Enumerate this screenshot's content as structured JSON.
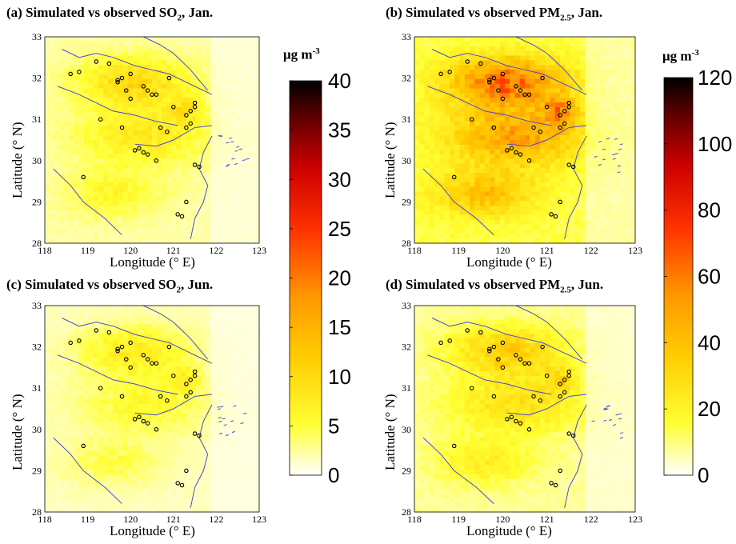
{
  "units": {
    "main": "μg m",
    "exp": "-3"
  },
  "xlabel": "Longitude (°  E)",
  "ylabel": "Latitude (°  N)",
  "x_ticks": [
    "118",
    "119",
    "120",
    "121",
    "122",
    "123"
  ],
  "y_ticks": [
    "28",
    "29",
    "30",
    "31",
    "32",
    "33"
  ],
  "titles": {
    "a": {
      "pre": "(a) Simulated vs observed SO",
      "sub": "2",
      "post": ", Jan."
    },
    "b": {
      "pre": "(b) Simulated vs observed PM",
      "sub": "2.5",
      "post": ", Jan."
    },
    "c": {
      "pre": "(c) Simulated vs observed SO",
      "sub": "2",
      "post": ", Jun."
    },
    "d": {
      "pre": "(d) Simulated vs observed PM",
      "sub": "2.5",
      "post": ", Jun."
    }
  },
  "colorbars": {
    "so2": {
      "ticks": [
        "0",
        "5",
        "10",
        "15",
        "20",
        "25",
        "30",
        "35",
        "40"
      ],
      "min": 0,
      "max": 40
    },
    "pm25": {
      "ticks": [
        "0",
        "20",
        "40",
        "60",
        "80",
        "100",
        "120"
      ],
      "min": 0,
      "max": 120
    }
  },
  "colors": {
    "coast": "#4a4ad0",
    "colormap": [
      "#ffffff",
      "#ffff33",
      "#ffcc00",
      "#ff9900",
      "#ff3300",
      "#cc0000",
      "#660000",
      "#000000"
    ]
  },
  "chart_data": [
    {
      "type": "heatmap",
      "panel": "a",
      "title": "(a) Simulated vs observed SO2, Jan.",
      "xlabel": "Longitude (°  E)",
      "ylabel": "Latitude (°  N)",
      "xlim": [
        118,
        123
      ],
      "ylim": [
        28,
        33
      ],
      "colorbar_range": [
        0,
        40
      ],
      "pollutant": "SO2",
      "month": "Jan.",
      "max_value": 16,
      "stations": [
        [
          118.6,
          32.1
        ],
        [
          118.8,
          32.15
        ],
        [
          119.2,
          32.4
        ],
        [
          119.5,
          32.35
        ],
        [
          119.7,
          31.95
        ],
        [
          119.8,
          32.0
        ],
        [
          120.0,
          32.1
        ],
        [
          120.3,
          31.8
        ],
        [
          120.4,
          31.7
        ],
        [
          120.5,
          31.6
        ],
        [
          120.6,
          31.6
        ],
        [
          120.9,
          32.0
        ],
        [
          121.0,
          31.3
        ],
        [
          121.3,
          31.1
        ],
        [
          121.4,
          31.2
        ],
        [
          121.5,
          31.3
        ],
        [
          121.5,
          31.4
        ],
        [
          121.4,
          30.9
        ],
        [
          121.3,
          30.8
        ],
        [
          120.2,
          30.3
        ],
        [
          120.1,
          30.25
        ],
        [
          120.3,
          30.2
        ],
        [
          120.4,
          30.15
        ],
        [
          119.3,
          31.0
        ],
        [
          119.8,
          30.8
        ],
        [
          120.6,
          30.0
        ],
        [
          121.5,
          29.9
        ],
        [
          121.6,
          29.85
        ],
        [
          118.9,
          29.6
        ],
        [
          121.1,
          28.7
        ],
        [
          121.2,
          28.65
        ],
        [
          121.3,
          29.0
        ],
        [
          120.7,
          30.8
        ],
        [
          120.85,
          30.7
        ],
        [
          119.9,
          31.7
        ],
        [
          120.0,
          31.5
        ],
        [
          119.7,
          31.9
        ]
      ]
    },
    {
      "type": "heatmap",
      "panel": "b",
      "title": "(b) Simulated vs observed PM2.5, Jan.",
      "xlabel": "Longitude (°  E)",
      "ylabel": "Latitude (°  N)",
      "xlim": [
        118,
        123
      ],
      "ylim": [
        28,
        33
      ],
      "colorbar_range": [
        0,
        120
      ],
      "pollutant": "PM2.5",
      "month": "Jan.",
      "max_value": 100,
      "stations": [
        [
          118.6,
          32.1
        ],
        [
          118.8,
          32.15
        ],
        [
          119.2,
          32.4
        ],
        [
          119.5,
          32.35
        ],
        [
          119.7,
          31.95
        ],
        [
          119.8,
          32.0
        ],
        [
          120.0,
          32.1
        ],
        [
          120.3,
          31.8
        ],
        [
          120.4,
          31.7
        ],
        [
          120.5,
          31.6
        ],
        [
          120.6,
          31.6
        ],
        [
          120.9,
          32.0
        ],
        [
          121.0,
          31.3
        ],
        [
          121.3,
          31.1
        ],
        [
          121.4,
          31.2
        ],
        [
          121.5,
          31.3
        ],
        [
          121.5,
          31.4
        ],
        [
          121.4,
          30.9
        ],
        [
          121.3,
          30.8
        ],
        [
          120.2,
          30.3
        ],
        [
          120.1,
          30.25
        ],
        [
          120.3,
          30.2
        ],
        [
          120.4,
          30.15
        ],
        [
          119.3,
          31.0
        ],
        [
          119.8,
          30.8
        ],
        [
          120.6,
          30.0
        ],
        [
          121.5,
          29.9
        ],
        [
          121.6,
          29.85
        ],
        [
          118.9,
          29.6
        ],
        [
          121.1,
          28.7
        ],
        [
          121.2,
          28.65
        ],
        [
          121.3,
          29.0
        ],
        [
          120.7,
          30.8
        ],
        [
          120.85,
          30.7
        ],
        [
          119.9,
          31.7
        ],
        [
          120.0,
          31.5
        ],
        [
          119.7,
          31.9
        ]
      ]
    },
    {
      "type": "heatmap",
      "panel": "c",
      "title": "(c) Simulated vs observed SO2, Jun.",
      "xlabel": "Longitude (°  E)",
      "ylabel": "Latitude (°  N)",
      "xlim": [
        118,
        123
      ],
      "ylim": [
        28,
        33
      ],
      "colorbar_range": [
        0,
        40
      ],
      "pollutant": "SO2",
      "month": "Jun.",
      "max_value": 12,
      "stations": [
        [
          118.6,
          32.1
        ],
        [
          118.8,
          32.15
        ],
        [
          119.2,
          32.4
        ],
        [
          119.5,
          32.35
        ],
        [
          119.7,
          31.95
        ],
        [
          119.8,
          32.0
        ],
        [
          120.0,
          32.1
        ],
        [
          120.3,
          31.8
        ],
        [
          120.4,
          31.7
        ],
        [
          120.5,
          31.6
        ],
        [
          120.6,
          31.6
        ],
        [
          120.9,
          32.0
        ],
        [
          121.0,
          31.3
        ],
        [
          121.3,
          31.1
        ],
        [
          121.4,
          31.2
        ],
        [
          121.5,
          31.3
        ],
        [
          121.5,
          31.4
        ],
        [
          121.4,
          30.9
        ],
        [
          121.3,
          30.8
        ],
        [
          120.2,
          30.3
        ],
        [
          120.1,
          30.25
        ],
        [
          120.3,
          30.2
        ],
        [
          120.4,
          30.15
        ],
        [
          119.3,
          31.0
        ],
        [
          119.8,
          30.8
        ],
        [
          120.6,
          30.0
        ],
        [
          121.5,
          29.9
        ],
        [
          121.6,
          29.85
        ],
        [
          118.9,
          29.6
        ],
        [
          121.1,
          28.7
        ],
        [
          121.2,
          28.65
        ],
        [
          121.3,
          29.0
        ],
        [
          120.7,
          30.8
        ],
        [
          120.85,
          30.7
        ],
        [
          119.9,
          31.7
        ],
        [
          120.0,
          31.5
        ],
        [
          119.7,
          31.9
        ]
      ]
    },
    {
      "type": "heatmap",
      "panel": "d",
      "title": "(d) Simulated vs observed PM2.5, Jun.",
      "xlabel": "Longitude (°  E)",
      "ylabel": "Latitude (°  N)",
      "xlim": [
        118,
        123
      ],
      "ylim": [
        28,
        33
      ],
      "colorbar_range": [
        0,
        120
      ],
      "pollutant": "PM2.5",
      "month": "Jun.",
      "max_value": 55,
      "stations": [
        [
          118.6,
          32.1
        ],
        [
          118.8,
          32.15
        ],
        [
          119.2,
          32.4
        ],
        [
          119.5,
          32.35
        ],
        [
          119.7,
          31.95
        ],
        [
          119.8,
          32.0
        ],
        [
          120.0,
          32.1
        ],
        [
          120.3,
          31.8
        ],
        [
          120.4,
          31.7
        ],
        [
          120.5,
          31.6
        ],
        [
          120.6,
          31.6
        ],
        [
          120.9,
          32.0
        ],
        [
          121.0,
          31.3
        ],
        [
          121.3,
          31.1
        ],
        [
          121.4,
          31.2
        ],
        [
          121.5,
          31.3
        ],
        [
          121.5,
          31.4
        ],
        [
          121.4,
          30.9
        ],
        [
          121.3,
          30.8
        ],
        [
          120.2,
          30.3
        ],
        [
          120.1,
          30.25
        ],
        [
          120.3,
          30.2
        ],
        [
          120.4,
          30.15
        ],
        [
          119.3,
          31.0
        ],
        [
          119.8,
          30.8
        ],
        [
          120.6,
          30.0
        ],
        [
          121.5,
          29.9
        ],
        [
          121.6,
          29.85
        ],
        [
          118.9,
          29.6
        ],
        [
          121.1,
          28.7
        ],
        [
          121.2,
          28.65
        ],
        [
          121.3,
          29.0
        ],
        [
          120.7,
          30.8
        ],
        [
          120.85,
          30.7
        ],
        [
          119.9,
          31.7
        ],
        [
          120.0,
          31.5
        ],
        [
          119.7,
          31.9
        ]
      ]
    }
  ]
}
